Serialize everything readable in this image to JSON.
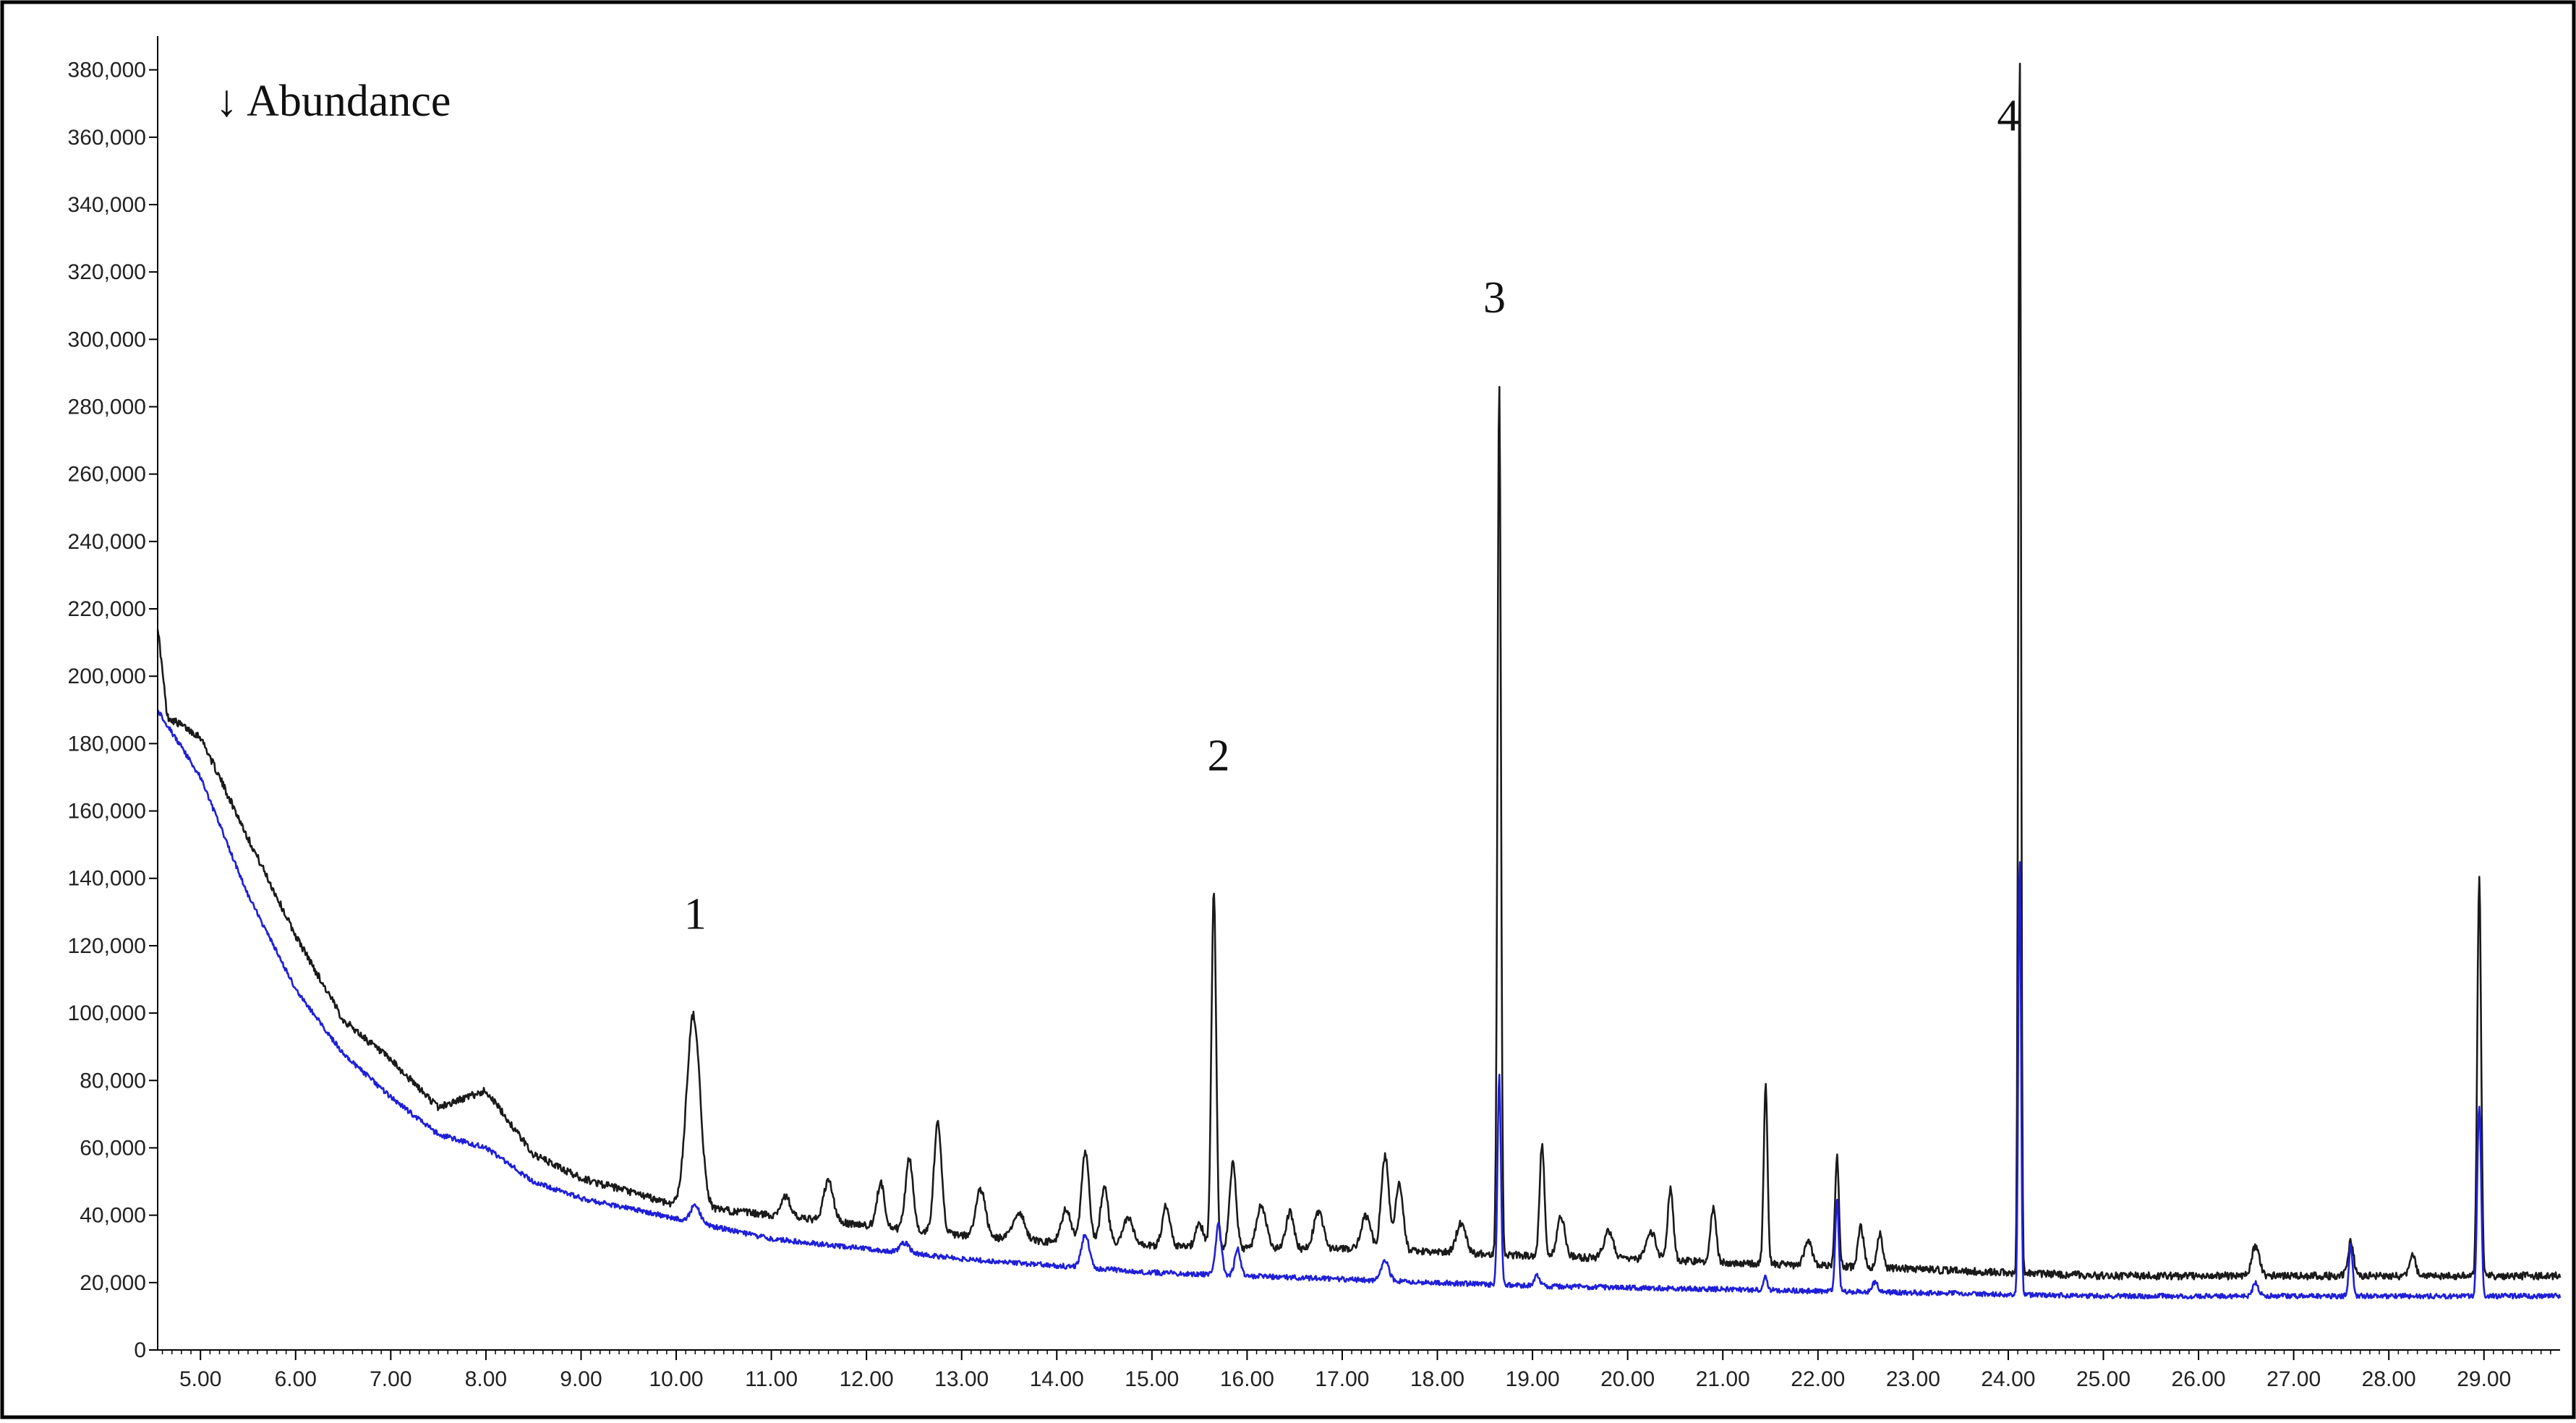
{
  "chart_data": {
    "type": "line",
    "ylabel": "↓ Abundance",
    "xlabel": "",
    "xlim": [
      4.55,
      29.8
    ],
    "ylim": [
      0,
      390000
    ],
    "x_ticks": [
      5.0,
      6.0,
      7.0,
      8.0,
      9.0,
      10.0,
      11.0,
      12.0,
      13.0,
      14.0,
      15.0,
      16.0,
      17.0,
      18.0,
      19.0,
      20.0,
      21.0,
      22.0,
      23.0,
      24.0,
      25.0,
      26.0,
      27.0,
      28.0,
      29.0
    ],
    "x_tick_labels": [
      "5.00",
      "6.00",
      "7.00",
      "8.00",
      "9.00",
      "10.00",
      "11.00",
      "12.00",
      "13.00",
      "14.00",
      "15.00",
      "16.00",
      "17.00",
      "18.00",
      "19.00",
      "20.00",
      "21.00",
      "22.00",
      "23.00",
      "24.00",
      "25.00",
      "26.00",
      "27.00",
      "28.00",
      "29.00"
    ],
    "y_ticks": [
      0,
      20000,
      40000,
      60000,
      80000,
      100000,
      120000,
      140000,
      160000,
      180000,
      200000,
      220000,
      240000,
      260000,
      280000,
      300000,
      320000,
      340000,
      360000,
      380000
    ],
    "y_tick_labels": [
      "0",
      "20,000",
      "40,000",
      "60,000",
      "80,000",
      "100,000",
      "120,000",
      "140,000",
      "160,000",
      "180,000",
      "200,000",
      "220,000",
      "240,000",
      "260,000",
      "280,000",
      "300,000",
      "320,000",
      "340,000",
      "360,000",
      "380,000"
    ],
    "grid": false,
    "legend": "none",
    "series": [
      {
        "color": "#1a1a1a",
        "baseline": [
          [
            4.55,
            215000
          ],
          [
            4.65,
            188000
          ],
          [
            5.0,
            182000
          ],
          [
            5.5,
            152000
          ],
          [
            6.0,
            123000
          ],
          [
            6.5,
            98000
          ],
          [
            7.0,
            86000
          ],
          [
            7.5,
            72000
          ],
          [
            8.0,
            77000
          ],
          [
            8.5,
            58000
          ],
          [
            9.0,
            51000
          ],
          [
            9.5,
            47000
          ],
          [
            10.0,
            43000
          ],
          [
            11.0,
            40000
          ],
          [
            12.0,
            37000
          ],
          [
            13.0,
            34000
          ],
          [
            14.0,
            32000
          ],
          [
            15.0,
            31000
          ],
          [
            16.0,
            30000
          ],
          [
            17.0,
            30000
          ],
          [
            18.0,
            29000
          ],
          [
            19.0,
            28000
          ],
          [
            20.0,
            27000
          ],
          [
            21.0,
            26000
          ],
          [
            22.0,
            25000
          ],
          [
            23.0,
            24000
          ],
          [
            24.0,
            23000
          ],
          [
            25.0,
            22000
          ],
          [
            26.0,
            22000
          ],
          [
            27.0,
            22000
          ],
          [
            28.0,
            22000
          ],
          [
            29.0,
            22000
          ],
          [
            29.8,
            22000
          ]
        ],
        "peaks": [
          [
            10.18,
            57000,
            0.07
          ],
          [
            11.15,
            6000,
            0.05
          ],
          [
            11.6,
            12000,
            0.05
          ],
          [
            12.15,
            13000,
            0.04
          ],
          [
            12.45,
            21000,
            0.04
          ],
          [
            12.75,
            33000,
            0.04
          ],
          [
            13.2,
            14000,
            0.05
          ],
          [
            13.6,
            8000,
            0.06
          ],
          [
            14.1,
            10000,
            0.05
          ],
          [
            14.3,
            27000,
            0.04
          ],
          [
            14.5,
            17000,
            0.04
          ],
          [
            14.75,
            8000,
            0.05
          ],
          [
            15.15,
            12000,
            0.04
          ],
          [
            15.5,
            7000,
            0.04
          ],
          [
            15.65,
            106000,
            0.025
          ],
          [
            15.85,
            25000,
            0.035
          ],
          [
            16.15,
            13000,
            0.05
          ],
          [
            16.45,
            11000,
            0.04
          ],
          [
            16.75,
            11000,
            0.05
          ],
          [
            17.25,
            10000,
            0.05
          ],
          [
            17.45,
            28000,
            0.04
          ],
          [
            17.6,
            20000,
            0.04
          ],
          [
            18.25,
            9000,
            0.05
          ],
          [
            18.65,
            259000,
            0.018
          ],
          [
            19.1,
            33000,
            0.025
          ],
          [
            19.3,
            12000,
            0.04
          ],
          [
            19.8,
            8000,
            0.05
          ],
          [
            20.25,
            8000,
            0.05
          ],
          [
            20.45,
            21000,
            0.03
          ],
          [
            20.9,
            16000,
            0.03
          ],
          [
            21.45,
            53000,
            0.02
          ],
          [
            21.9,
            7000,
            0.04
          ],
          [
            22.2,
            33000,
            0.02
          ],
          [
            22.45,
            12000,
            0.03
          ],
          [
            22.65,
            10000,
            0.03
          ],
          [
            24.12,
            364000,
            0.014
          ],
          [
            26.6,
            9000,
            0.04
          ],
          [
            27.6,
            10000,
            0.03
          ],
          [
            28.25,
            6000,
            0.03
          ],
          [
            28.95,
            118000,
            0.02
          ]
        ]
      },
      {
        "color": "#1f1fd8",
        "baseline": [
          [
            4.55,
            190000
          ],
          [
            5.0,
            170000
          ],
          [
            5.5,
            135000
          ],
          [
            6.0,
            107000
          ],
          [
            6.5,
            88000
          ],
          [
            7.0,
            75000
          ],
          [
            7.5,
            64000
          ],
          [
            8.0,
            60000
          ],
          [
            8.5,
            50000
          ],
          [
            9.0,
            45000
          ],
          [
            9.5,
            42000
          ],
          [
            10.0,
            39000
          ],
          [
            11.0,
            33000
          ],
          [
            12.0,
            30000
          ],
          [
            13.0,
            27000
          ],
          [
            14.0,
            25000
          ],
          [
            15.0,
            23000
          ],
          [
            16.0,
            22000
          ],
          [
            17.0,
            21000
          ],
          [
            18.0,
            20000
          ],
          [
            19.0,
            19000
          ],
          [
            20.0,
            18500
          ],
          [
            21.0,
            18000
          ],
          [
            22.0,
            17500
          ],
          [
            23.0,
            17000
          ],
          [
            24.0,
            16500
          ],
          [
            25.0,
            16000
          ],
          [
            26.0,
            16000
          ],
          [
            27.0,
            16000
          ],
          [
            28.0,
            16000
          ],
          [
            29.0,
            16000
          ],
          [
            29.8,
            16000
          ]
        ],
        "peaks": [
          [
            10.2,
            5000,
            0.05
          ],
          [
            12.4,
            3000,
            0.05
          ],
          [
            14.3,
            10000,
            0.04
          ],
          [
            15.7,
            15000,
            0.03
          ],
          [
            15.9,
            8000,
            0.03
          ],
          [
            17.45,
            6000,
            0.04
          ],
          [
            18.65,
            62000,
            0.018
          ],
          [
            19.05,
            3000,
            0.03
          ],
          [
            21.45,
            4000,
            0.02
          ],
          [
            22.2,
            27000,
            0.018
          ],
          [
            22.6,
            3000,
            0.03
          ],
          [
            24.12,
            130000,
            0.014
          ],
          [
            26.6,
            4000,
            0.03
          ],
          [
            27.6,
            15000,
            0.02
          ],
          [
            28.95,
            57000,
            0.02
          ]
        ]
      }
    ],
    "annotations": [
      {
        "label": "1",
        "x": 10.2,
        "y": 125000
      },
      {
        "label": "2",
        "x": 15.7,
        "y": 172000
      },
      {
        "label": "3",
        "x": 18.6,
        "y": 308000
      },
      {
        "label": "4",
        "x": 24.0,
        "y": 362000
      }
    ]
  }
}
